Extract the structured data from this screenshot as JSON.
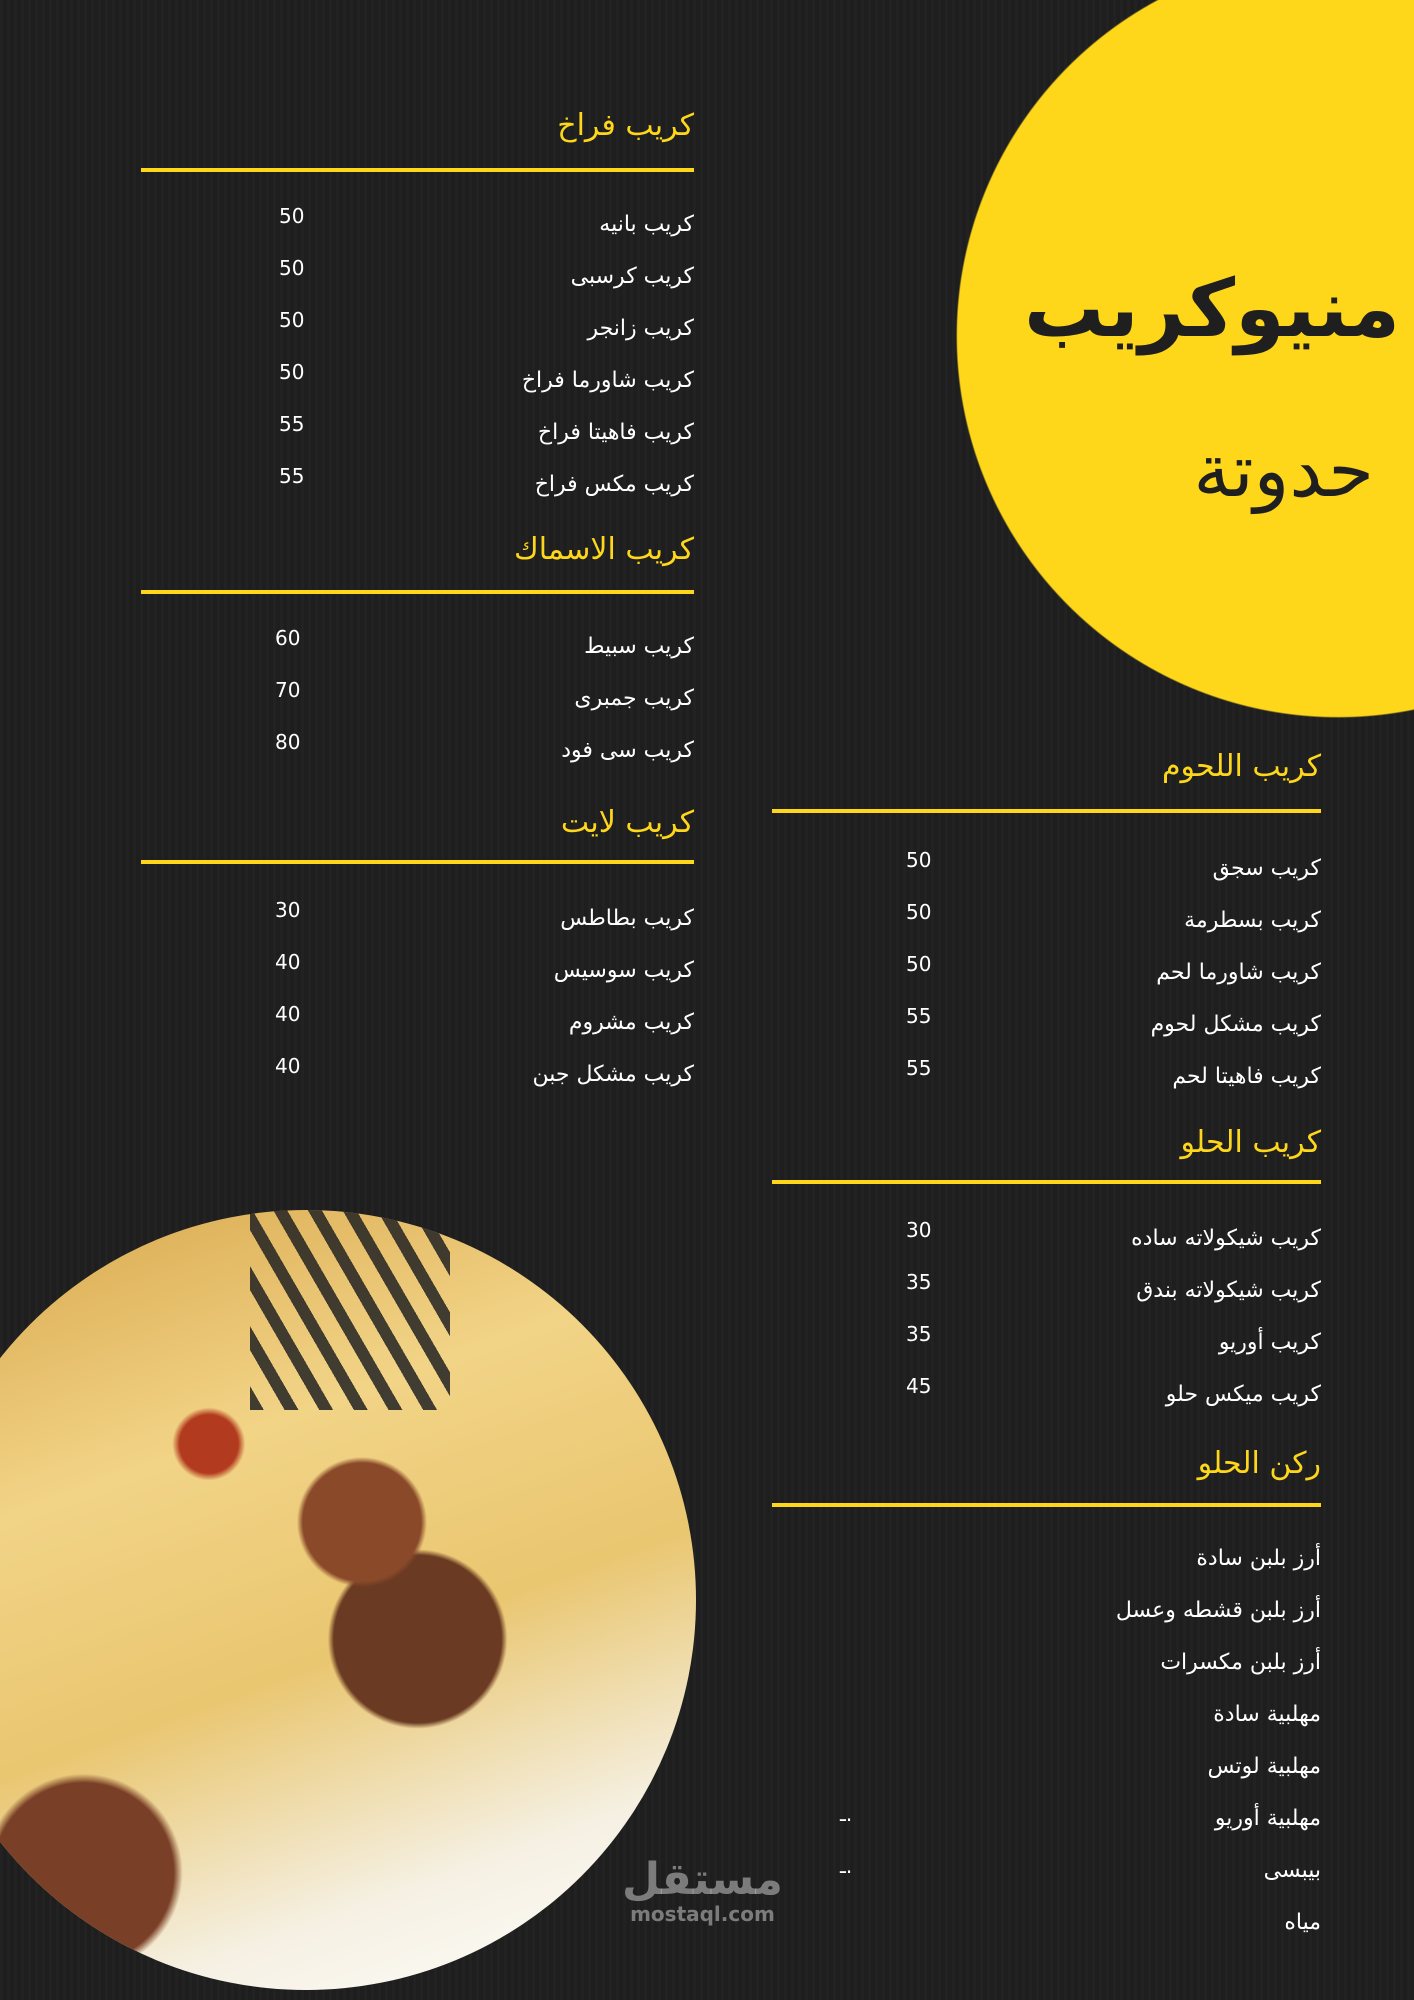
{
  "brand": {
    "title": "منيوكريب",
    "subtitle": "حدوتة"
  },
  "colors": {
    "accent": "#fed71b",
    "background": "#1f1f1f",
    "text": "#ffffff"
  },
  "sections": [
    {
      "title": "كريب فراخ",
      "items": [
        {
          "name": "كريب بانيه",
          "price": "50"
        },
        {
          "name": "كريب كرسبى",
          "price": "50"
        },
        {
          "name": "كريب زانجر",
          "price": "50"
        },
        {
          "name": "كريب شاورما فراخ",
          "price": "50"
        },
        {
          "name": "كريب فاهيتا فراخ",
          "price": "55"
        },
        {
          "name": "كريب مكس فراخ",
          "price": "55"
        }
      ]
    },
    {
      "title": "كريب الاسماك",
      "items": [
        {
          "name": "كريب سبيط",
          "price": "60"
        },
        {
          "name": "كريب جمبرى",
          "price": "70"
        },
        {
          "name": "كريب سى فود",
          "price": "80"
        }
      ]
    },
    {
      "title": "كريب لايت",
      "items": [
        {
          "name": "كريب بطاطس",
          "price": "30"
        },
        {
          "name": "كريب سوسيس",
          "price": "40"
        },
        {
          "name": "كريب مشروم",
          "price": "40"
        },
        {
          "name": "كريب مشكل جبن",
          "price": "40"
        }
      ]
    },
    {
      "title": "كريب اللحوم",
      "items": [
        {
          "name": "كريب سجق",
          "price": "50"
        },
        {
          "name": "كريب بسطرمة",
          "price": "50"
        },
        {
          "name": "كريب شاورما لحم",
          "price": "50"
        },
        {
          "name": "كريب مشكل لحوم",
          "price": "55"
        },
        {
          "name": "كريب فاهيتا لحم",
          "price": "55"
        }
      ]
    },
    {
      "title": "كريب الحلو",
      "items": [
        {
          "name": "كريب شيكولاته ساده",
          "price": "30"
        },
        {
          "name": "كريب شيكولاته بندق",
          "price": "35"
        },
        {
          "name": "كريب أوريو",
          "price": "35"
        },
        {
          "name": "كريب ميكس حلو",
          "price": "45"
        }
      ]
    },
    {
      "title": "ركن الحلو",
      "items": [
        {
          "name": "أرز بلبن سادة",
          "price": ""
        },
        {
          "name": "أرز بلبن قشطه وعسل",
          "price": ""
        },
        {
          "name": "أرز بلبن مكسرات",
          "price": ""
        },
        {
          "name": "مهلبية سادة",
          "price": ""
        },
        {
          "name": "مهلبية لوتس",
          "price": ""
        },
        {
          "name": "مهلبية أوريو",
          "price": "ـ."
        },
        {
          "name": "بيبسى",
          "price": "ـ."
        },
        {
          "name": "مياه",
          "price": ""
        }
      ]
    }
  ],
  "watermark": {
    "arabic": "مستقل",
    "latin": "mostaql.com"
  }
}
